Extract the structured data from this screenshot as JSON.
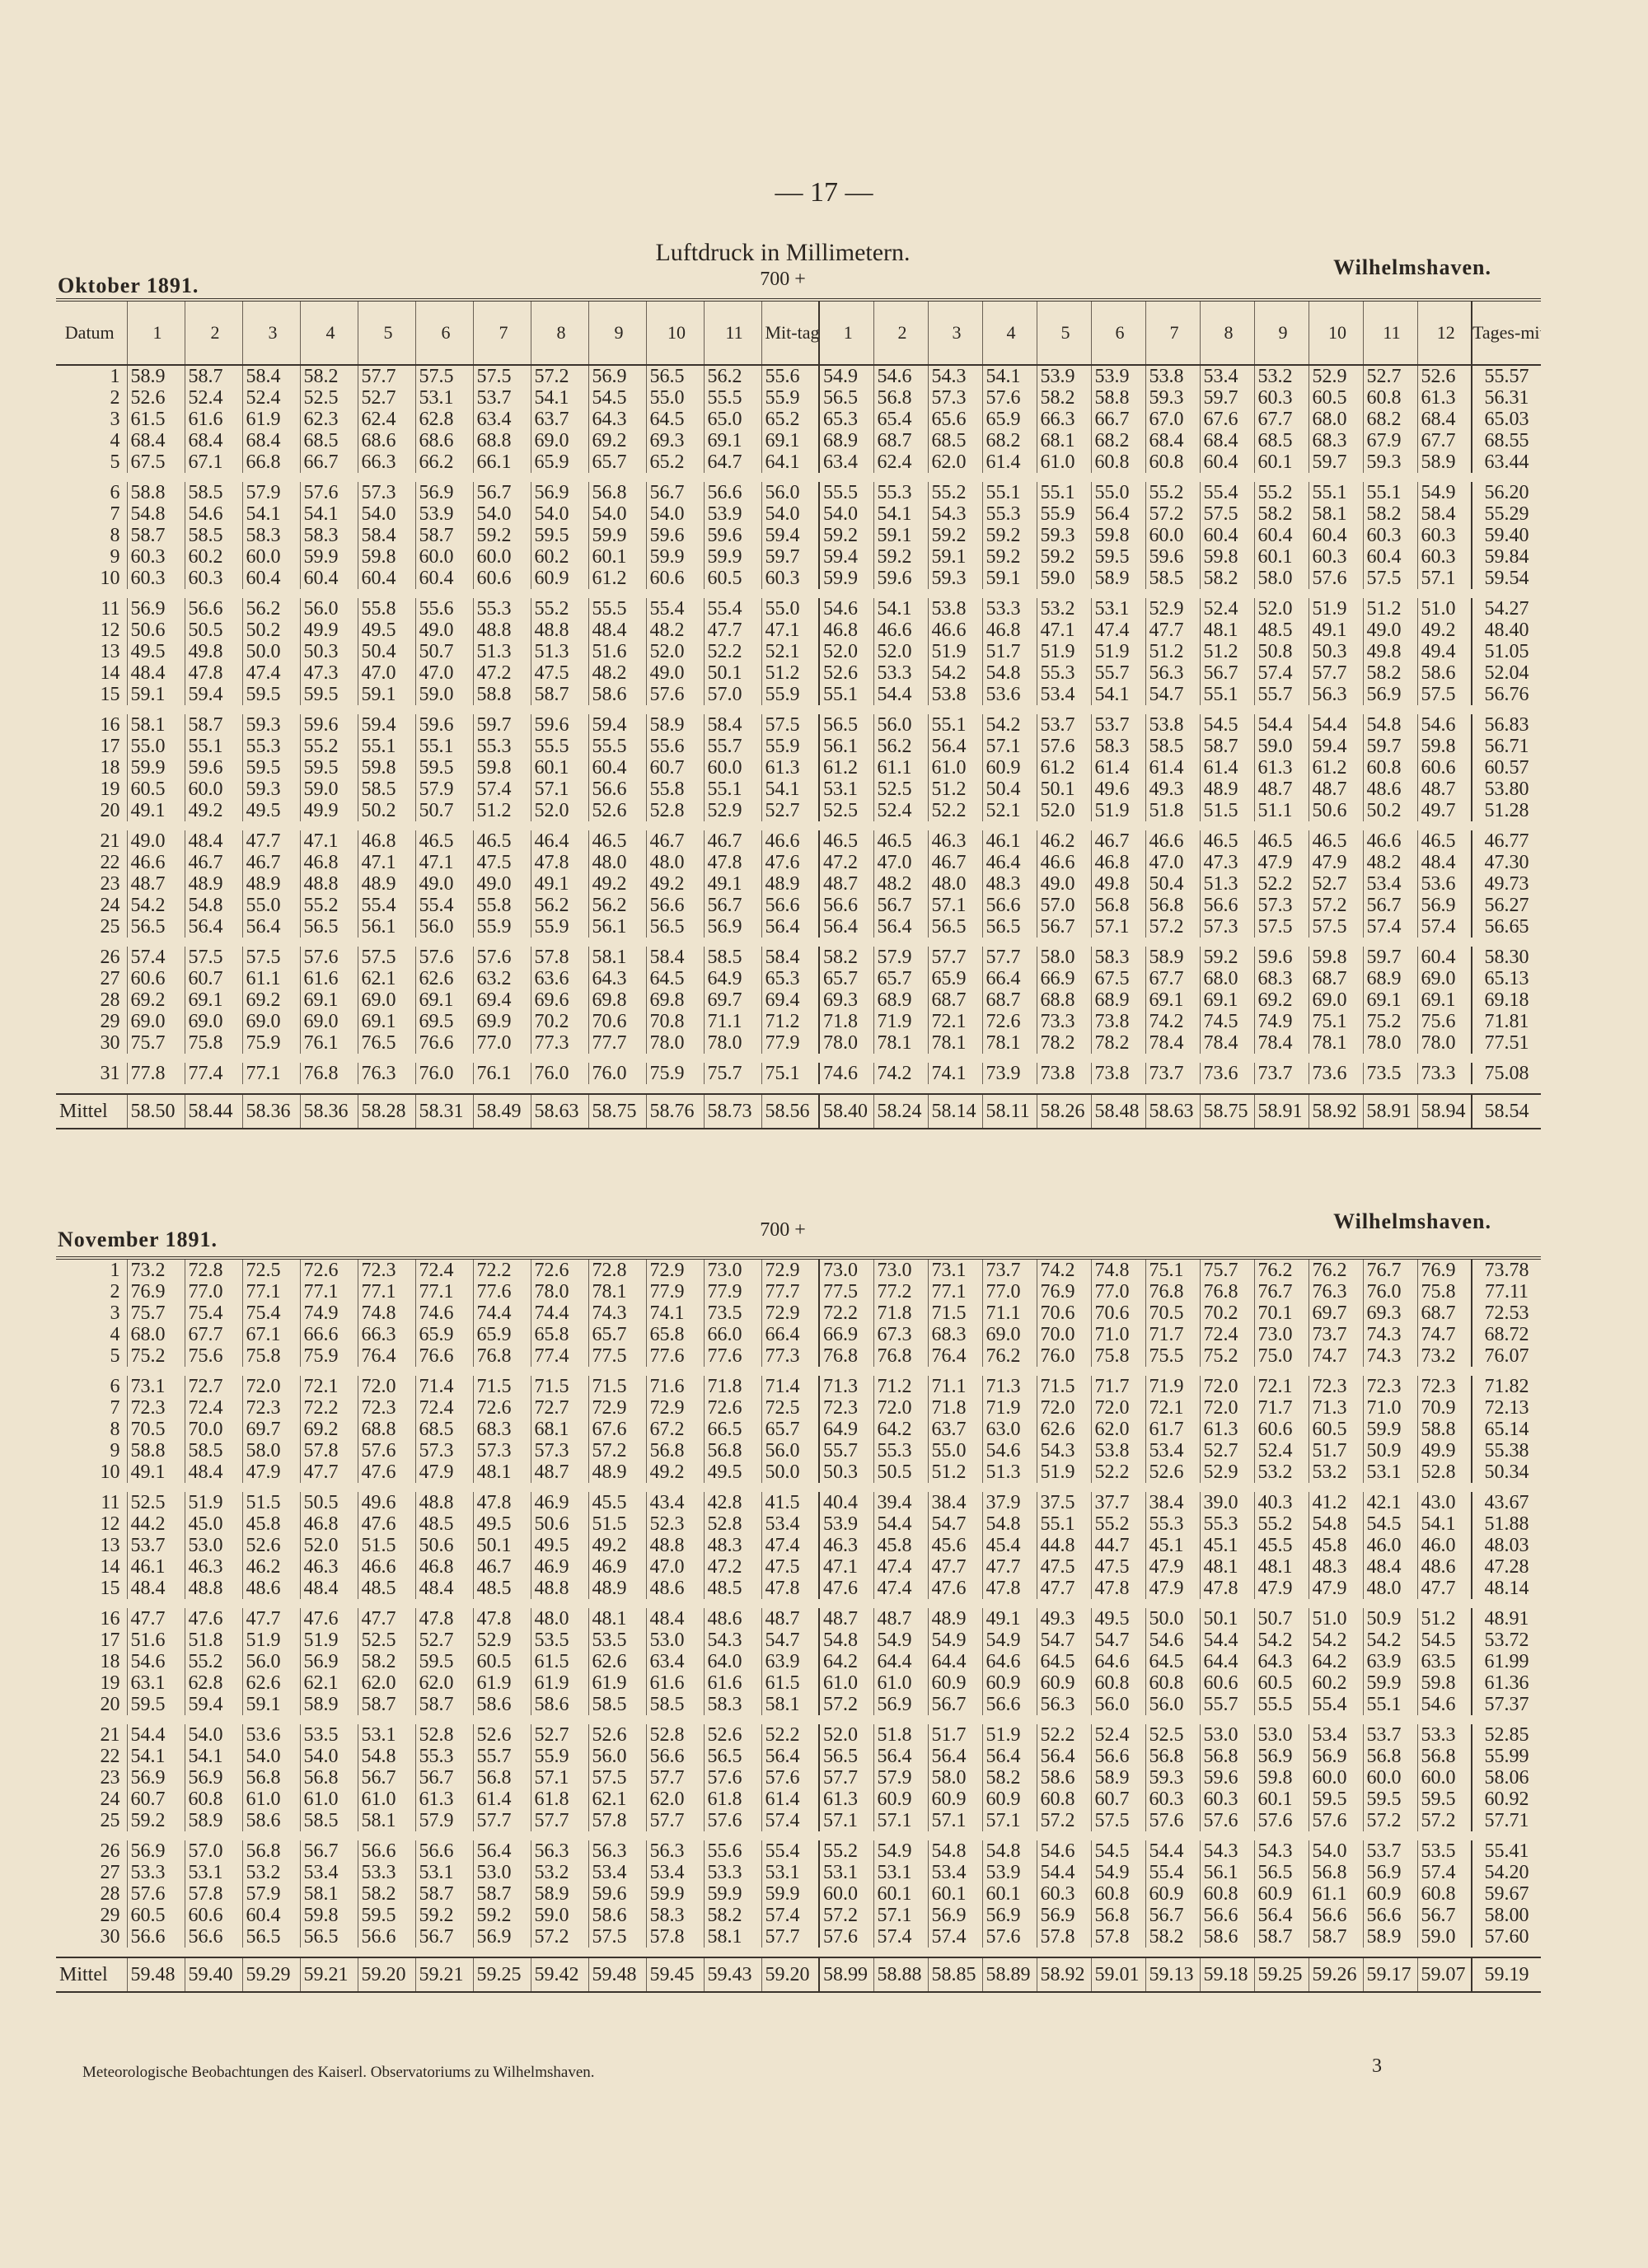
{
  "page_number": "— 17 —",
  "title": "Luftdruck in Millimetern.",
  "base_label": "700 +",
  "headers": [
    "Datum",
    "1",
    "2",
    "3",
    "4",
    "5",
    "6",
    "7",
    "8",
    "9",
    "10",
    "11",
    "Mit-tag",
    "1",
    "2",
    "3",
    "4",
    "5",
    "6",
    "7",
    "8",
    "9",
    "10",
    "11",
    "12",
    "Tages-mittel"
  ],
  "mittel_label": "Mittel",
  "footer": "Meteorologische Beobachtungen des Kaiserl. Observatoriums zu Wilhelmshaven.",
  "sheet_number": "3",
  "months": [
    {
      "title": "Oktober 1891.",
      "location": "Wilhelmshaven.",
      "rows": [
        [
          "1",
          "58.9 58.7 58.4 58.2 57.7 57.5 57.5 57.2 56.9 56.5 56.2 55.6 54.9 54.6 54.3 54.1 53.9 53.9 53.8 53.4 53.2 52.9 52.7 52.6",
          "55.57"
        ],
        [
          "2",
          "52.6 52.4 52.4 52.5 52.7 53.1 53.7 54.1 54.5 55.0 55.5 55.9 56.5 56.8 57.3 57.6 58.2 58.8 59.3 59.7 60.3 60.5 60.8 61.3",
          "56.31"
        ],
        [
          "3",
          "61.5 61.6 61.9 62.3 62.4 62.8 63.4 63.7 64.3 64.5 65.0 65.2 65.3 65.4 65.6 65.9 66.3 66.7 67.0 67.6 67.7 68.0 68.2 68.4",
          "65.03"
        ],
        [
          "4",
          "68.4 68.4 68.4 68.5 68.6 68.6 68.8 69.0 69.2 69.3 69.1 69.1 68.9 68.7 68.5 68.2 68.1 68.2 68.4 68.4 68.5 68.3 67.9 67.7",
          "68.55"
        ],
        [
          "5",
          "67.5 67.1 66.8 66.7 66.3 66.2 66.1 65.9 65.7 65.2 64.7 64.1 63.4 62.4 62.0 61.4 61.0 60.8 60.8 60.4 60.1 59.7 59.3 58.9",
          "63.44"
        ],
        [
          "6",
          "58.8 58.5 57.9 57.6 57.3 56.9 56.7 56.9 56.8 56.7 56.6 56.0 55.5 55.3 55.2 55.1 55.1 55.0 55.2 55.4 55.2 55.1 55.1 54.9",
          "56.20"
        ],
        [
          "7",
          "54.8 54.6 54.1 54.1 54.0 53.9 54.0 54.0 54.0 54.0 53.9 54.0 54.0 54.1 54.3 55.3 55.9 56.4 57.2 57.5 58.2 58.1 58.2 58.4",
          "55.29"
        ],
        [
          "8",
          "58.7 58.5 58.3 58.3 58.4 58.7 59.2 59.5 59.9 59.6 59.6 59.4 59.2 59.1 59.2 59.2 59.3 59.8 60.0 60.4 60.4 60.4 60.3 60.3",
          "59.40"
        ],
        [
          "9",
          "60.3 60.2 60.0 59.9 59.8 60.0 60.0 60.2 60.1 59.9 59.9 59.7 59.4 59.2 59.1 59.2 59.2 59.5 59.6 59.8 60.1 60.3 60.4 60.3",
          "59.84"
        ],
        [
          "10",
          "60.3 60.3 60.4 60.4 60.4 60.4 60.6 60.9 61.2 60.6 60.5 60.3 59.9 59.6 59.3 59.1 59.0 58.9 58.5 58.2 58.0 57.6 57.5 57.1",
          "59.54"
        ],
        [
          "11",
          "56.9 56.6 56.2 56.0 55.8 55.6 55.3 55.2 55.5 55.4 55.4 55.0 54.6 54.1 53.8 53.3 53.2 53.1 52.9 52.4 52.0 51.9 51.2 51.0",
          "54.27"
        ],
        [
          "12",
          "50.6 50.5 50.2 49.9 49.5 49.0 48.8 48.8 48.4 48.2 47.7 47.1 46.8 46.6 46.6 46.8 47.1 47.4 47.7 48.1 48.5 49.1 49.0 49.2",
          "48.40"
        ],
        [
          "13",
          "49.5 49.8 50.0 50.3 50.4 50.7 51.3 51.3 51.6 52.0 52.2 52.1 52.0 52.0 51.9 51.7 51.9 51.9 51.2 51.2 50.8 50.3 49.8 49.4",
          "51.05"
        ],
        [
          "14",
          "48.4 47.8 47.4 47.3 47.0 47.0 47.2 47.5 48.2 49.0 50.1 51.2 52.6 53.3 54.2 54.8 55.3 55.7 56.3 56.7 57.4 57.7 58.2 58.6",
          "52.04"
        ],
        [
          "15",
          "59.1 59.4 59.5 59.5 59.1 59.0 58.8 58.7 58.6 57.6 57.0 55.9 55.1 54.4 53.8 53.6 53.4 54.1 54.7 55.1 55.7 56.3 56.9 57.5",
          "56.76"
        ],
        [
          "16",
          "58.1 58.7 59.3 59.6 59.4 59.6 59.7 59.6 59.4 58.9 58.4 57.5 56.5 56.0 55.1 54.2 53.7 53.7 53.8 54.5 54.4 54.4 54.8 54.6",
          "56.83"
        ],
        [
          "17",
          "55.0 55.1 55.3 55.2 55.1 55.1 55.3 55.5 55.5 55.6 55.7 55.9 56.1 56.2 56.4 57.1 57.6 58.3 58.5 58.7 59.0 59.4 59.7 59.8",
          "56.71"
        ],
        [
          "18",
          "59.9 59.6 59.5 59.5 59.8 59.5 59.8 60.1 60.4 60.7 60.0 61.3 61.2 61.1 61.0 60.9 61.2 61.4 61.4 61.4 61.3 61.2 60.8 60.6",
          "60.57"
        ],
        [
          "19",
          "60.5 60.0 59.3 59.0 58.5 57.9 57.4 57.1 56.6 55.8 55.1 54.1 53.1 52.5 51.2 50.4 50.1 49.6 49.3 48.9 48.7 48.7 48.6 48.7",
          "53.80"
        ],
        [
          "20",
          "49.1 49.2 49.5 49.9 50.2 50.7 51.2 52.0 52.6 52.8 52.9 52.7 52.5 52.4 52.2 52.1 52.0 51.9 51.8 51.5 51.1 50.6 50.2 49.7",
          "51.28"
        ],
        [
          "21",
          "49.0 48.4 47.7 47.1 46.8 46.5 46.5 46.4 46.5 46.7 46.7 46.6 46.5 46.5 46.3 46.1 46.2 46.7 46.6 46.5 46.5 46.5 46.6 46.5",
          "46.77"
        ],
        [
          "22",
          "46.6 46.7 46.7 46.8 47.1 47.1 47.5 47.8 48.0 48.0 47.8 47.6 47.2 47.0 46.7 46.4 46.6 46.8 47.0 47.3 47.9 47.9 48.2 48.4",
          "47.30"
        ],
        [
          "23",
          "48.7 48.9 48.9 48.8 48.9 49.0 49.0 49.1 49.2 49.2 49.1 48.9 48.7 48.2 48.0 48.3 49.0 49.8 50.4 51.3 52.2 52.7 53.4 53.6",
          "49.73"
        ],
        [
          "24",
          "54.2 54.8 55.0 55.2 55.4 55.4 55.8 56.2 56.2 56.6 56.7 56.6 56.6 56.7 57.1 56.6 57.0 56.8 56.8 56.6 57.3 57.2 56.7 56.9",
          "56.27"
        ],
        [
          "25",
          "56.5 56.4 56.4 56.5 56.1 56.0 55.9 55.9 56.1 56.5 56.9 56.4 56.4 56.4 56.5 56.5 56.7 57.1 57.2 57.3 57.5 57.5 57.4 57.4",
          "56.65"
        ],
        [
          "26",
          "57.4 57.5 57.5 57.6 57.5 57.6 57.6 57.8 58.1 58.4 58.5 58.4 58.2 57.9 57.7 57.7 58.0 58.3 58.9 59.2 59.6 59.8 59.7 60.4",
          "58.30"
        ],
        [
          "27",
          "60.6 60.7 61.1 61.6 62.1 62.6 63.2 63.6 64.3 64.5 64.9 65.3 65.7 65.7 65.9 66.4 66.9 67.5 67.7 68.0 68.3 68.7 68.9 69.0",
          "65.13"
        ],
        [
          "28",
          "69.2 69.1 69.2 69.1 69.0 69.1 69.4 69.6 69.8 69.8 69.7 69.4 69.3 68.9 68.7 68.7 68.8 68.9 69.1 69.1 69.2 69.0 69.1 69.1",
          "69.18"
        ],
        [
          "29",
          "69.0 69.0 69.0 69.0 69.1 69.5 69.9 70.2 70.6 70.8 71.1 71.2 71.8 71.9 72.1 72.6 73.3 73.8 74.2 74.5 74.9 75.1 75.2 75.6",
          "71.81"
        ],
        [
          "30",
          "75.7 75.8 75.9 76.1 76.5 76.6 77.0 77.3 77.7 78.0 78.0 77.9 78.0 78.1 78.1 78.1 78.2 78.2 78.4 78.4 78.4 78.1 78.0 78.0",
          "77.51"
        ],
        [
          "31",
          "77.8 77.4 77.1 76.8 76.3 76.0 76.1 76.0 76.0 75.9 75.7 75.1 74.6 74.2 74.1 73.9 73.8 73.8 73.7 73.6 73.7 73.6 73.5 73.3",
          "75.08"
        ]
      ],
      "mittel": [
        "58.50 58.44 58.36 58.36 58.28 58.31 58.49 58.63 58.75 58.76 58.73 58.56 58.40 58.24 58.14 58.11 58.26 58.48 58.63 58.75 58.91 58.92 58.91 58.94",
        "58.54"
      ]
    },
    {
      "title": "November 1891.",
      "location": "Wilhelmshaven.",
      "rows": [
        [
          "1",
          "73.2 72.8 72.5 72.6 72.3 72.4 72.2 72.6 72.8 72.9 73.0 72.9 73.0 73.0 73.1 73.7 74.2 74.8 75.1 75.7 76.2 76.2 76.7 76.9",
          "73.78"
        ],
        [
          "2",
          "76.9 77.0 77.1 77.1 77.1 77.1 77.6 78.0 78.1 77.9 77.9 77.7 77.5 77.2 77.1 77.0 76.9 77.0 76.8 76.8 76.7 76.3 76.0 75.8",
          "77.11"
        ],
        [
          "3",
          "75.7 75.4 75.4 74.9 74.8 74.6 74.4 74.4 74.3 74.1 73.5 72.9 72.2 71.8 71.5 71.1 70.6 70.6 70.5 70.2 70.1 69.7 69.3 68.7",
          "72.53"
        ],
        [
          "4",
          "68.0 67.7 67.1 66.6 66.3 65.9 65.9 65.8 65.7 65.8 66.0 66.4 66.9 67.3 68.3 69.0 70.0 71.0 71.7 72.4 73.0 73.7 74.3 74.7",
          "68.72"
        ],
        [
          "5",
          "75.2 75.6 75.8 75.9 76.4 76.6 76.8 77.4 77.5 77.6 77.6 77.3 76.8 76.8 76.4 76.2 76.0 75.8 75.5 75.2 75.0 74.7 74.3 73.2",
          "76.07"
        ],
        [
          "6",
          "73.1 72.7 72.0 72.1 72.0 71.4 71.5 71.5 71.5 71.6 71.8 71.4 71.3 71.2 71.1 71.3 71.5 71.7 71.9 72.0 72.1 72.3 72.3 72.3",
          "71.82"
        ],
        [
          "7",
          "72.3 72.4 72.3 72.2 72.3 72.4 72.6 72.7 72.9 72.9 72.6 72.5 72.3 72.0 71.8 71.9 72.0 72.0 72.1 72.0 71.7 71.3 71.0 70.9",
          "72.13"
        ],
        [
          "8",
          "70.5 70.0 69.7 69.2 68.8 68.5 68.3 68.1 67.6 67.2 66.5 65.7 64.9 64.2 63.7 63.0 62.6 62.0 61.7 61.3 60.6 60.5 59.9 58.8",
          "65.14"
        ],
        [
          "9",
          "58.8 58.5 58.0 57.8 57.6 57.3 57.3 57.3 57.2 56.8 56.8 56.0 55.7 55.3 55.0 54.6 54.3 53.8 53.4 52.7 52.4 51.7 50.9 49.9",
          "55.38"
        ],
        [
          "10",
          "49.1 48.4 47.9 47.7 47.6 47.9 48.1 48.7 48.9 49.2 49.5 50.0 50.3 50.5 51.2 51.3 51.9 52.2 52.6 52.9 53.2 53.2 53.1 52.8",
          "50.34"
        ],
        [
          "11",
          "52.5 51.9 51.5 50.5 49.6 48.8 47.8 46.9 45.5 43.4 42.8 41.5 40.4 39.4 38.4 37.9 37.5 37.7 38.4 39.0 40.3 41.2 42.1 43.0",
          "43.67"
        ],
        [
          "12",
          "44.2 45.0 45.8 46.8 47.6 48.5 49.5 50.6 51.5 52.3 52.8 53.4 53.9 54.4 54.7 54.8 55.1 55.2 55.3 55.3 55.2 54.8 54.5 54.1",
          "51.88"
        ],
        [
          "13",
          "53.7 53.0 52.6 52.0 51.5 50.6 50.1 49.5 49.2 48.8 48.3 47.4 46.3 45.8 45.6 45.4 44.8 44.7 45.1 45.1 45.5 45.8 46.0 46.0",
          "48.03"
        ],
        [
          "14",
          "46.1 46.3 46.2 46.3 46.6 46.8 46.7 46.9 46.9 47.0 47.2 47.5 47.1 47.4 47.7 47.7 47.5 47.5 47.9 48.1 48.1 48.3 48.4 48.6",
          "47.28"
        ],
        [
          "15",
          "48.4 48.8 48.6 48.4 48.5 48.4 48.5 48.8 48.9 48.6 48.5 47.8 47.6 47.4 47.6 47.8 47.7 47.8 47.9 47.8 47.9 47.9 48.0 47.7",
          "48.14"
        ],
        [
          "16",
          "47.7 47.6 47.7 47.6 47.7 47.8 47.8 48.0 48.1 48.4 48.6 48.7 48.7 48.7 48.9 49.1 49.3 49.5 50.0 50.1 50.7 51.0 50.9 51.2",
          "48.91"
        ],
        [
          "17",
          "51.6 51.8 51.9 51.9 52.5 52.7 52.9 53.5 53.5 53.0 54.3 54.7 54.8 54.9 54.9 54.9 54.7 54.7 54.6 54.4 54.2 54.2 54.2 54.5",
          "53.72"
        ],
        [
          "18",
          "54.6 55.2 56.0 56.9 58.2 59.5 60.5 61.5 62.6 63.4 64.0 63.9 64.2 64.4 64.4 64.6 64.5 64.6 64.5 64.4 64.3 64.2 63.9 63.5",
          "61.99"
        ],
        [
          "19",
          "63.1 62.8 62.6 62.1 62.0 62.0 61.9 61.9 61.9 61.6 61.6 61.5 61.0 61.0 60.9 60.9 60.9 60.8 60.8 60.6 60.5 60.2 59.9 59.8",
          "61.36"
        ],
        [
          "20",
          "59.5 59.4 59.1 58.9 58.7 58.7 58.6 58.6 58.5 58.5 58.3 58.1 57.2 56.9 56.7 56.6 56.3 56.0 56.0 55.7 55.5 55.4 55.1 54.6",
          "57.37"
        ],
        [
          "21",
          "54.4 54.0 53.6 53.5 53.1 52.8 52.6 52.7 52.6 52.8 52.6 52.2 52.0 51.8 51.7 51.9 52.2 52.4 52.5 53.0 53.0 53.4 53.7 53.3",
          "52.85"
        ],
        [
          "22",
          "54.1 54.1 54.0 54.0 54.8 55.3 55.7 55.9 56.0 56.6 56.5 56.4 56.5 56.4 56.4 56.4 56.4 56.6 56.8 56.8 56.9 56.9 56.8 56.8",
          "55.99"
        ],
        [
          "23",
          "56.9 56.9 56.8 56.8 56.7 56.7 56.8 57.1 57.5 57.7 57.6 57.6 57.7 57.9 58.0 58.2 58.6 58.9 59.3 59.6 59.8 60.0 60.0 60.0",
          "58.06"
        ],
        [
          "24",
          "60.7 60.8 61.0 61.0 61.0 61.3 61.4 61.8 62.1 62.0 61.8 61.4 61.3 60.9 60.9 60.9 60.8 60.7 60.3 60.3 60.1 59.5 59.5 59.5",
          "60.92"
        ],
        [
          "25",
          "59.2 58.9 58.6 58.5 58.1 57.9 57.7 57.7 57.8 57.7 57.6 57.4 57.1 57.1 57.1 57.1 57.2 57.5 57.6 57.6 57.6 57.6 57.2 57.2",
          "57.71"
        ],
        [
          "26",
          "56.9 57.0 56.8 56.7 56.6 56.6 56.4 56.3 56.3 56.3 55.6 55.4 55.2 54.9 54.8 54.8 54.6 54.5 54.4 54.3 54.3 54.0 53.7 53.5",
          "55.41"
        ],
        [
          "27",
          "53.3 53.1 53.2 53.4 53.3 53.1 53.0 53.2 53.4 53.4 53.3 53.1 53.1 53.1 53.4 53.9 54.4 54.9 55.4 56.1 56.5 56.8 56.9 57.4",
          "54.20"
        ],
        [
          "28",
          "57.6 57.8 57.9 58.1 58.2 58.7 58.7 58.9 59.6 59.9 59.9 59.9 60.0 60.1 60.1 60.1 60.3 60.8 60.9 60.8 60.9 61.1 60.9 60.8",
          "59.67"
        ],
        [
          "29",
          "60.5 60.6 60.4 59.8 59.5 59.2 59.2 59.0 58.6 58.3 58.2 57.4 57.2 57.1 56.9 56.9 56.9 56.8 56.7 56.6 56.4 56.6 56.6 56.7",
          "58.00"
        ],
        [
          "30",
          "56.6 56.6 56.5 56.5 56.6 56.7 56.9 57.2 57.5 57.8 58.1 57.7 57.6 57.4 57.4 57.6 57.8 57.8 58.2 58.6 58.7 58.7 58.9 59.0",
          "57.60"
        ]
      ],
      "mittel": [
        "59.48 59.40 59.29 59.21 59.20 59.21 59.25 59.42 59.48 59.45 59.43 59.20 58.99 58.88 58.85 58.89 58.92 59.01 59.13 59.18 59.25 59.26 59.17 59.07",
        "59.19"
      ]
    }
  ]
}
